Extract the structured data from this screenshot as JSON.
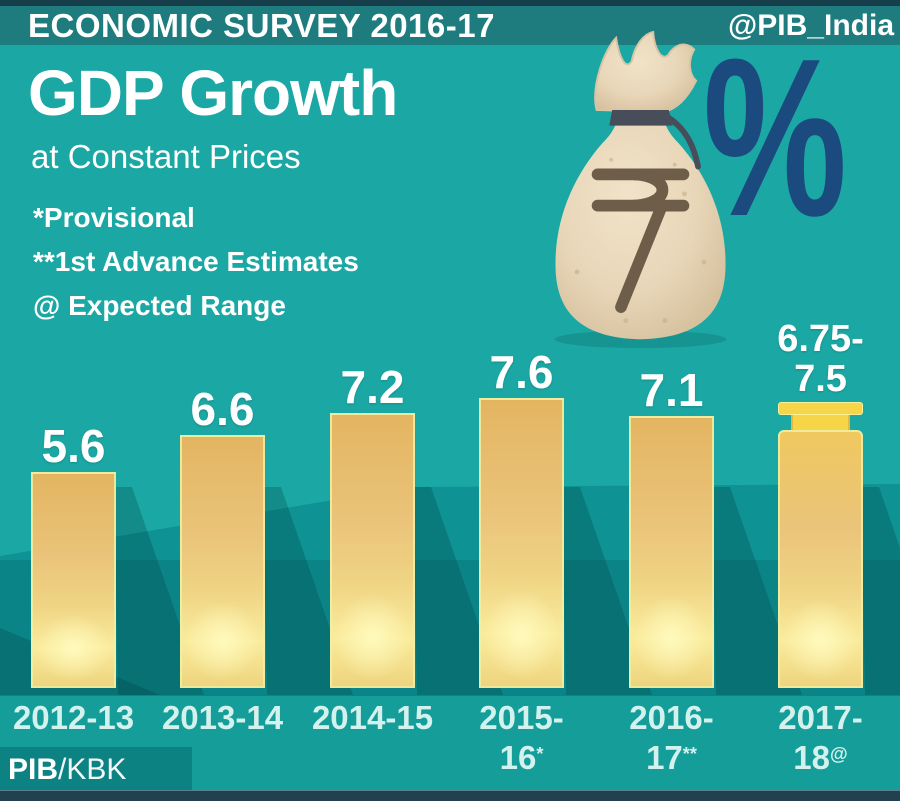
{
  "header": {
    "title": "ECONOMIC SURVEY 2016-17",
    "handle": "@PIB_India"
  },
  "title": {
    "main": "GDP Growth",
    "subtitle": "at Constant Prices"
  },
  "notes": [
    "*Provisional",
    "**1st Advance Estimates",
    "@ Expected Range"
  ],
  "percent_sign": "%",
  "credit": {
    "bold": "PIB",
    "rest": "/KBK"
  },
  "chart_data": {
    "type": "bar",
    "title": "GDP Growth at Constant Prices",
    "unit": "percent",
    "categories": [
      "2012-13",
      "2013-14",
      "2014-15",
      "2015-16*",
      "2016-17**",
      "2017-18@"
    ],
    "values": [
      5.6,
      6.6,
      7.2,
      7.6,
      7.1,
      null
    ],
    "last_bar_range": {
      "min": 6.75,
      "max": 7.5,
      "label": "6.75-7.5",
      "note": "@ Expected Range"
    },
    "value_labels": [
      [
        "5.6"
      ],
      [
        "6.6"
      ],
      [
        "7.2"
      ],
      [
        "7.6"
      ],
      [
        "7.1"
      ],
      [
        "6.75-",
        "7.5"
      ]
    ],
    "category_display": [
      {
        "l1": "2012-13"
      },
      {
        "l1": "2013-14"
      },
      {
        "l1": "2014-15"
      },
      {
        "l1": "2015-",
        "l2": "16",
        "sup": "*"
      },
      {
        "l1": "2016-",
        "l2": "17",
        "sup": "**"
      },
      {
        "l1": "2017-",
        "l2": "18",
        "sup": "@"
      }
    ],
    "grid": false,
    "legend": null,
    "footnotes": [
      "*Provisional = 2015-16",
      "**1st Advance Estimates = 2016-17",
      "@ Expected Range = 2017-18"
    ]
  },
  "colors": {
    "background_teal": "#1BA8A4",
    "header_bar_teal": "#1E7C7E",
    "top_line_navy": "#163F4B",
    "band_mid_teal": "#0F9294",
    "band_dark_teal": "#0A8487",
    "label_strip_teal": "#159D9A",
    "credit_box_teal": "#0C8283",
    "bottom_strip_navy": "#22414F",
    "bar_gold": "#ECC878",
    "bar_glow": "#FAEC9D",
    "range_yellow": "#F6D648",
    "percent_navy": "#1B4B7E",
    "category_label_cyan": "#D3F2EE",
    "text_white": "#FFFFFF",
    "bag_beige": "#E8D6B8",
    "rupee_brown": "#6E5D49"
  }
}
